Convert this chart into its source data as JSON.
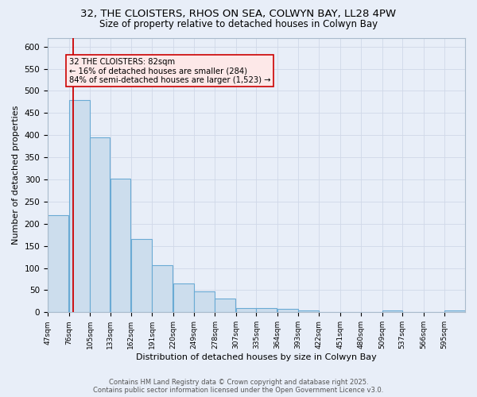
{
  "title": "32, THE CLOISTERS, RHOS ON SEA, COLWYN BAY, LL28 4PW",
  "subtitle": "Size of property relative to detached houses in Colwyn Bay",
  "xlabel": "Distribution of detached houses by size in Colwyn Bay",
  "ylabel": "Number of detached properties",
  "bar_color": "#ccdded",
  "bar_edge_color": "#6aaad4",
  "bar_edge_width": 0.8,
  "grid_color": "#d0d8e8",
  "bg_color": "#e8eef8",
  "fig_color": "#e8eef8",
  "property_line_x": 82,
  "property_line_color": "#cc0000",
  "annotation_text": "32 THE CLOISTERS: 82sqm\n← 16% of detached houses are smaller (284)\n84% of semi-detached houses are larger (1,523) →",
  "annotation_box_facecolor": "#fde8e8",
  "annotation_box_edgecolor": "#cc0000",
  "bins": [
    47,
    76,
    105,
    133,
    162,
    191,
    220,
    249,
    278,
    307,
    335,
    364,
    393,
    422,
    451,
    480,
    509,
    537,
    566,
    595,
    624
  ],
  "counts": [
    220,
    480,
    395,
    302,
    165,
    107,
    65,
    48,
    31,
    9,
    10,
    8,
    4,
    1,
    1,
    1,
    4,
    1,
    1,
    4
  ],
  "footer_text": "Contains HM Land Registry data © Crown copyright and database right 2025.\nContains public sector information licensed under the Open Government Licence v3.0.",
  "ylim": [
    0,
    620
  ],
  "yticks": [
    0,
    50,
    100,
    150,
    200,
    250,
    300,
    350,
    400,
    450,
    500,
    550,
    600
  ],
  "title_fontsize": 9.5,
  "subtitle_fontsize": 8.5,
  "xlabel_fontsize": 8.0,
  "ylabel_fontsize": 8.0,
  "tick_fontsize": 7.5,
  "xtick_fontsize": 6.5,
  "footer_fontsize": 6.0
}
